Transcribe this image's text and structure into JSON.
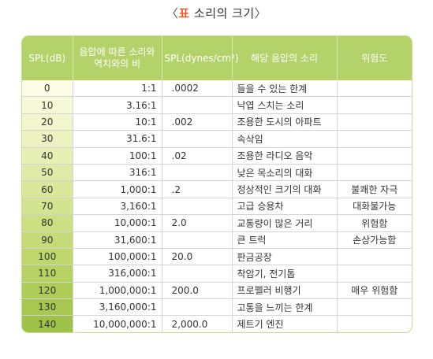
{
  "caption": {
    "open": "〈",
    "prefix": "표",
    "text": " 소리의 크기",
    "close": "〉"
  },
  "table": {
    "headers": [
      "SPL(dB)",
      "음압에 따른 소리와 역치와의 비",
      "SPL(dynes/cm²)",
      "해당 음압의 소리",
      "위험도"
    ],
    "rows": [
      {
        "spl": "0",
        "ratio": "1:1",
        "dynes": ".0002",
        "source": "들을 수 있는 한계",
        "risk": "",
        "color": "#fbfde7"
      },
      {
        "spl": "10",
        "ratio": "3.16:1",
        "dynes": "",
        "source": "낙엽 스치는 소리",
        "risk": "",
        "color": "#f6f9d8"
      },
      {
        "spl": "20",
        "ratio": "10:1",
        "dynes": ".002",
        "source": "조용한 도시의 아파트",
        "risk": "",
        "color": "#f1f6cc"
      },
      {
        "spl": "30",
        "ratio": "31.6:1",
        "dynes": "",
        "source": "속삭임",
        "risk": "",
        "color": "#ecf3c1"
      },
      {
        "spl": "40",
        "ratio": "100:1",
        "dynes": ".02",
        "source": "조용한 라디오 음악",
        "risk": "",
        "color": "#e6efb4"
      },
      {
        "spl": "50",
        "ratio": "316:1",
        "dynes": "",
        "source": "낮은 목소리의 대화",
        "risk": "",
        "color": "#e0eba8"
      },
      {
        "spl": "60",
        "ratio": "1,000:1",
        "dynes": ".2",
        "source": "정상적인 크기의 대화",
        "risk": "불쾌한 자극",
        "color": "#dae79b"
      },
      {
        "spl": "70",
        "ratio": "3,160:1",
        "dynes": "",
        "source": "고급 승용차",
        "risk": "대화불가능",
        "color": "#d4e38f"
      },
      {
        "spl": "80",
        "ratio": "10,000:1",
        "dynes": "2.0",
        "source": "교통량이 많은 거리",
        "risk": "위험함",
        "color": "#cddf83"
      },
      {
        "spl": "90",
        "ratio": "31,600:1",
        "dynes": "",
        "source": "큰 트럭",
        "risk": "손상가능함",
        "color": "#c6da78"
      },
      {
        "spl": "100",
        "ratio": "100,000:1",
        "dynes": "20.0",
        "source": "판금공장",
        "risk": "",
        "color": "#bfd66d"
      },
      {
        "spl": "110",
        "ratio": "316,000:1",
        "dynes": "",
        "source": "착암기, 전기톱",
        "risk": "",
        "color": "#b7d163"
      },
      {
        "spl": "120",
        "ratio": "1,000,000:1",
        "dynes": "200.0",
        "source": "프로펠러 비행기",
        "risk": "매우 위험함",
        "color": "#afcc59"
      },
      {
        "spl": "130",
        "ratio": "3,160,000:1",
        "dynes": "",
        "source": "고통을 느끼는 한계",
        "risk": "",
        "color": "#a7c750"
      },
      {
        "spl": "140",
        "ratio": "10,000,000:1",
        "dynes": "2,000.0",
        "source": "제트기 엔진",
        "risk": "",
        "color": "#9fc248"
      }
    ]
  },
  "colors": {
    "header_bg": "#b4d26a",
    "header_text": "#ffffff",
    "caption_accent": "#e85a2a",
    "grid_line": "#d4d4d4"
  }
}
